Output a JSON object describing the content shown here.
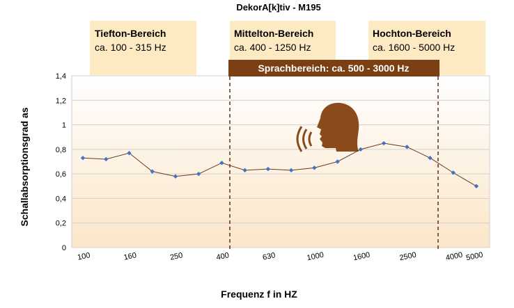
{
  "chart_data": {
    "type": "line",
    "title": "DekorA[k]tiv - M195",
    "xlabel": "Frequenz f in HZ",
    "ylabel": "Schallabsorptionsgrad as",
    "ylim": [
      0,
      1.4
    ],
    "yticks": [
      "0",
      "0,2",
      "0,4",
      "0,6",
      "0,8",
      "1",
      "1,2",
      "1,4"
    ],
    "xtick_labels": [
      "100",
      "160",
      "250",
      "400",
      "630",
      "1000",
      "1600",
      "2500",
      "4000",
      "5000"
    ],
    "x": [
      "100",
      "125",
      "160",
      "200",
      "250",
      "315",
      "400",
      "500",
      "630",
      "800",
      "1000",
      "1250",
      "1600",
      "2000",
      "2500",
      "3150",
      "4000",
      "5000"
    ],
    "series": [
      {
        "values": [
          0.73,
          0.72,
          0.77,
          0.62,
          0.58,
          0.6,
          0.69,
          0.63,
          0.64,
          0.63,
          0.65,
          0.7,
          0.8,
          0.85,
          0.82,
          0.73,
          0.61,
          0.5
        ]
      }
    ],
    "grid": "horizontal",
    "ranges": [
      {
        "title": "Tiefton-Bereich",
        "range": "ca. 100 - 315 Hz"
      },
      {
        "title": "Mittelton-Bereich",
        "range": "ca. 400 - 1250 Hz"
      },
      {
        "title": "Hochton-Bereich",
        "range": "ca. 1600 - 5000 Hz"
      }
    ],
    "speech_band": {
      "label": "Sprachbereich: ca. 500 - 3000 Hz",
      "from": "400",
      "to": "3150"
    }
  },
  "colors": {
    "line": "#6b3a1f",
    "marker": "#4472c4",
    "range_box": "#fde9c2",
    "speech_band": "#7b3f14",
    "speech_text": "#ffffff",
    "plot_gradient_top": "#ffffff",
    "plot_gradient_bottom": "#fbe6c8",
    "grid": "#d0d0d0",
    "head_icon": "#8a4a1a"
  },
  "icons": {
    "speaker": "speaking-head-icon"
  }
}
